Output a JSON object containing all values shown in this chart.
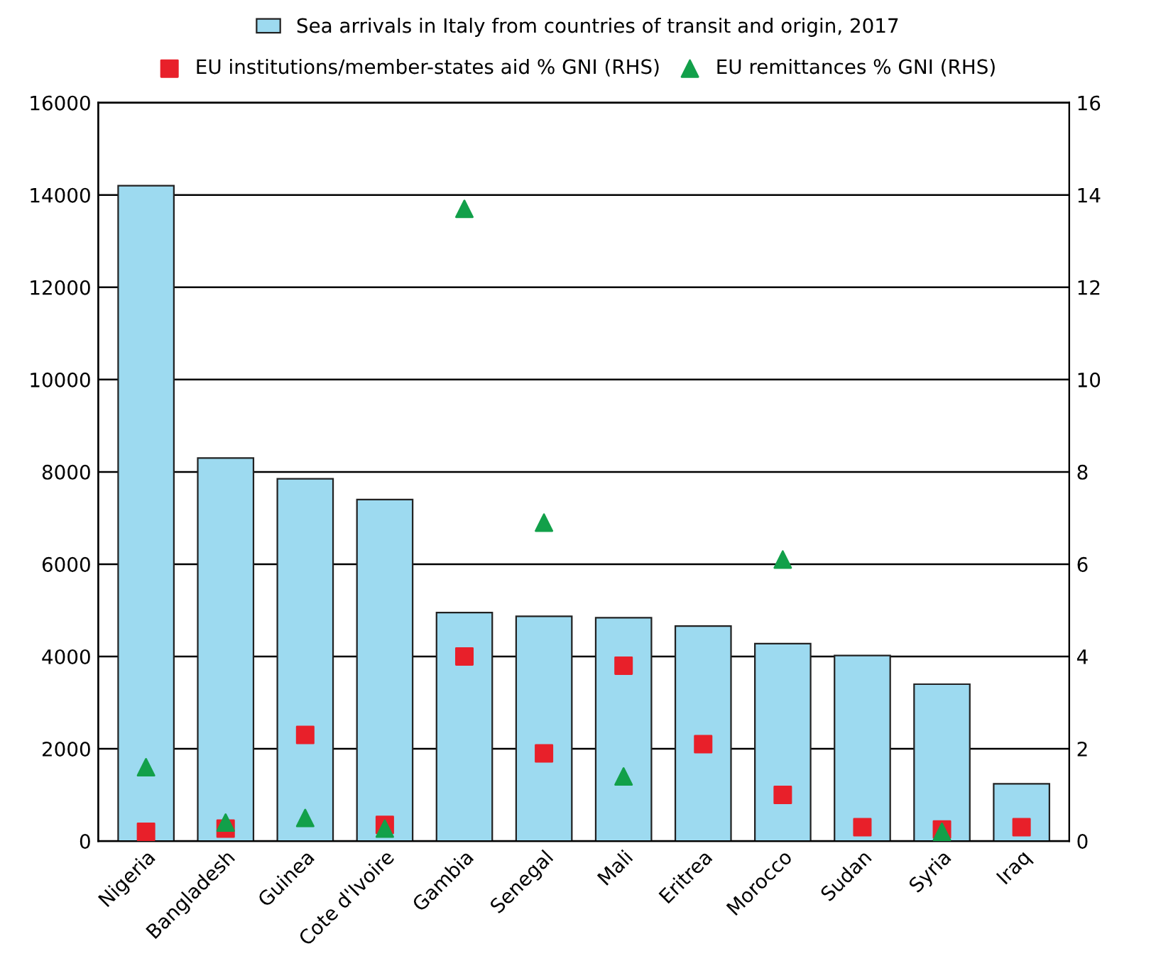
{
  "chart_data": {
    "type": "bar",
    "categories": [
      "Nigeria",
      "Bangladesh",
      "Guinea",
      "Cote d'Ivoire",
      "Gambia",
      "Senegal",
      "Mali",
      "Eritrea",
      "Morocco",
      "Sudan",
      "Syria",
      "Iraq"
    ],
    "series": [
      {
        "name": "Sea arrivals in Italy from countries of transit and origin, 2017",
        "color": "#9ddaf0",
        "values": [
          14200,
          8300,
          7850,
          7400,
          4950,
          4870,
          4840,
          4660,
          4280,
          4020,
          3400,
          1240
        ]
      },
      {
        "name": "EU institutions/member-states aid % GNI (RHS)",
        "type": "scatter",
        "axis": "y2",
        "marker": "square",
        "color": "#e8202a",
        "values": [
          0.2,
          0.27,
          2.3,
          0.35,
          4.0,
          1.9,
          3.8,
          2.1,
          1.0,
          0.3,
          0.25,
          0.3
        ]
      },
      {
        "name": "EU remittances % GNI (RHS)",
        "type": "scatter",
        "axis": "y2",
        "marker": "triangle",
        "color": "#12a04a",
        "values": [
          1.6,
          0.4,
          0.5,
          0.27,
          13.7,
          6.9,
          1.4,
          null,
          6.1,
          null,
          0.2,
          null
        ]
      }
    ],
    "ylim": [
      0,
      16000
    ],
    "yticks": [
      0,
      2000,
      4000,
      6000,
      8000,
      10000,
      12000,
      14000,
      16000
    ],
    "y2lim": [
      0,
      16
    ],
    "y2ticks": [
      0,
      2,
      4,
      6,
      8,
      10,
      12,
      14,
      16
    ],
    "grid": "y",
    "legend": "top"
  }
}
